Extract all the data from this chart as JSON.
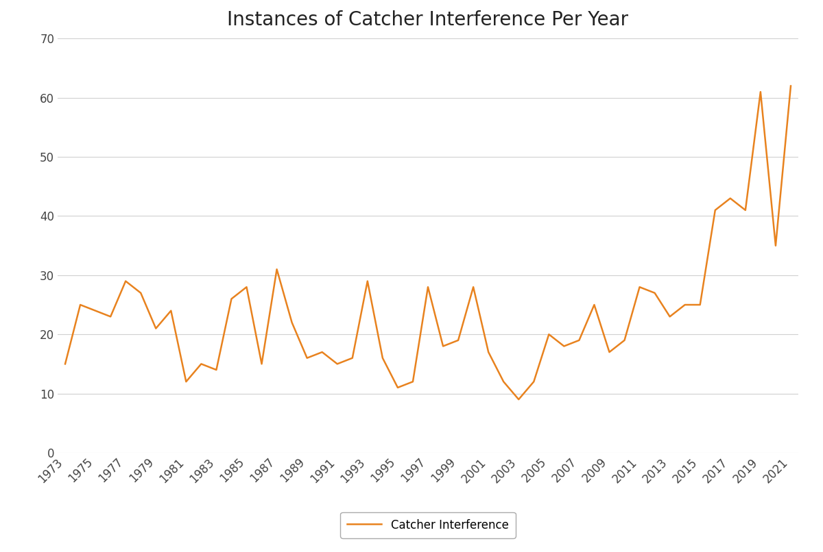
{
  "years": [
    1973,
    1974,
    1975,
    1976,
    1977,
    1978,
    1979,
    1980,
    1981,
    1982,
    1983,
    1984,
    1985,
    1986,
    1987,
    1988,
    1989,
    1990,
    1991,
    1992,
    1993,
    1994,
    1995,
    1996,
    1997,
    1998,
    1999,
    2000,
    2001,
    2002,
    2003,
    2004,
    2005,
    2006,
    2007,
    2008,
    2009,
    2010,
    2011,
    2012,
    2013,
    2014,
    2015,
    2016,
    2017,
    2018,
    2019,
    2020,
    2021
  ],
  "values": [
    15,
    25,
    24,
    23,
    29,
    27,
    21,
    24,
    12,
    15,
    14,
    26,
    28,
    15,
    31,
    22,
    16,
    17,
    15,
    16,
    29,
    16,
    11,
    12,
    28,
    18,
    19,
    28,
    17,
    12,
    9,
    12,
    20,
    18,
    19,
    25,
    17,
    19,
    28,
    27,
    23,
    25,
    25,
    41,
    43,
    41,
    61,
    35,
    62
  ],
  "line_color": "#E8821E",
  "title": "Instances of Catcher Interference Per Year",
  "title_fontsize": 20,
  "legend_label": "Catcher Interference",
  "ylim": [
    0,
    70
  ],
  "yticks": [
    0,
    10,
    20,
    30,
    40,
    50,
    60,
    70
  ],
  "background_color": "#ffffff",
  "grid_color": "#d0d0d0",
  "line_width": 1.8,
  "tick_fontsize": 12,
  "title_color": "#222222",
  "tick_color": "#444444"
}
